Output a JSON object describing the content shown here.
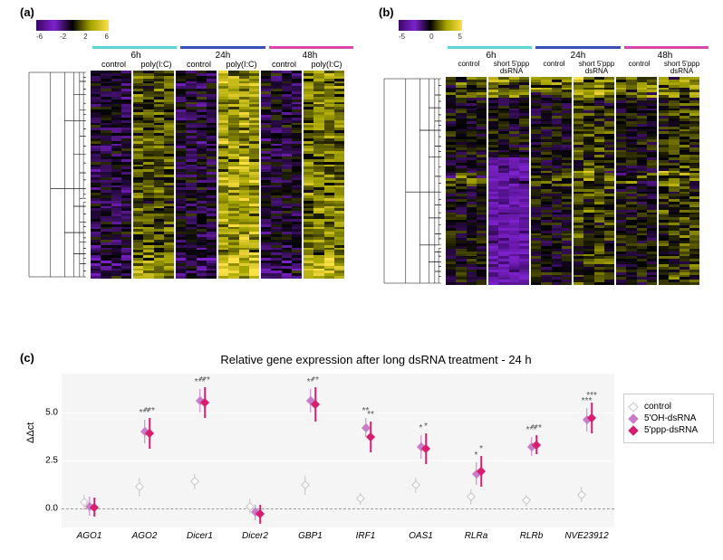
{
  "panelA": {
    "label": "(a)",
    "colorbar": {
      "min": -6,
      "max": 6,
      "ticks": [
        "-6",
        "-2",
        "2",
        "6"
      ],
      "gradient": [
        "#3b0764",
        "#7e22ce",
        "#000000",
        "#a3a300",
        "#fde047"
      ]
    },
    "timepoints": [
      "6h",
      "24h",
      "48h"
    ],
    "time_colors": [
      "#5dd5d5",
      "#3b4db8",
      "#d946a7"
    ],
    "conditions": [
      "control",
      "poly(I:C)",
      "control",
      "poly(I:C)",
      "control",
      "poly(I:C)"
    ],
    "rows": 80,
    "cols_per_block": 4,
    "heatmap_seed": 1
  },
  "panelB": {
    "label": "(b)",
    "colorbar": {
      "min": -5,
      "max": 5,
      "ticks": [
        "-5",
        "0",
        "5"
      ],
      "gradient": [
        "#3b0764",
        "#7e22ce",
        "#000000",
        "#a3a300",
        "#fde047"
      ]
    },
    "timepoints": [
      "6h",
      "24h",
      "48h"
    ],
    "time_colors": [
      "#5dd5d5",
      "#3b4db8",
      "#d946a7"
    ],
    "conditions": [
      "control",
      "short 5'ppp\ndsRNA",
      "control",
      "short 5'ppp\ndsRNA",
      "control",
      "short 5'ppp\ndsRNA"
    ],
    "rows": 80,
    "cols_per_block": 4,
    "heatmap_seed": 2
  },
  "panelC": {
    "label": "(c)",
    "title": "Relative gene expression after long dsRNA treatment - 24 h",
    "yaxis_label": "ΔΔct",
    "ylim": [
      -1,
      7
    ],
    "yticks": [
      0.0,
      2.5,
      5.0
    ],
    "genes": [
      "AGO1",
      "AGO2",
      "Dicer1",
      "Dicer2",
      "GBP1",
      "IRF1",
      "OAS1",
      "RLRa",
      "RLRb",
      "NVE23912"
    ],
    "series": [
      {
        "name": "control",
        "color": "#c4c4c4",
        "offset": -0.2,
        "values": [
          0.3,
          1.1,
          1.4,
          0.1,
          1.2,
          0.5,
          1.2,
          0.6,
          0.4,
          0.7
        ],
        "errors": [
          0.4,
          0.5,
          0.4,
          0.4,
          0.5,
          0.3,
          0.4,
          0.4,
          0.3,
          0.4
        ],
        "sig": [
          "",
          "",
          "",
          "",
          "",
          "",
          "",
          "",
          "",
          ""
        ]
      },
      {
        "name": "5'OH-dsRNA",
        "color": "#c97cc9",
        "offset": 0.0,
        "values": [
          0.1,
          4.0,
          5.6,
          -0.2,
          5.6,
          4.2,
          3.2,
          1.8,
          3.2,
          4.6
        ],
        "errors": [
          0.5,
          0.6,
          0.6,
          0.4,
          0.6,
          0.5,
          0.6,
          0.6,
          0.5,
          0.6
        ],
        "sig": [
          "",
          "***",
          "***",
          "",
          "**",
          "**",
          "*",
          "*",
          "***",
          "***"
        ]
      },
      {
        "name": "5'ppp-dsRNA",
        "color": "#d61f6e",
        "offset": 0.2,
        "values": [
          0.05,
          3.9,
          5.5,
          -0.3,
          5.4,
          3.7,
          3.1,
          1.9,
          3.3,
          4.7
        ],
        "errors": [
          0.5,
          0.8,
          0.8,
          0.5,
          0.9,
          0.8,
          0.8,
          0.8,
          0.5,
          0.8
        ],
        "sig": [
          "",
          "***",
          "***",
          "",
          "**",
          "**",
          "*",
          "*",
          "***",
          "***"
        ]
      }
    ],
    "legend": [
      "control",
      "5'OH-dsRNA",
      "5'ppp-dsRNA"
    ],
    "legend_colors": [
      "#c4c4c4",
      "#c97cc9",
      "#d61f6e"
    ]
  }
}
